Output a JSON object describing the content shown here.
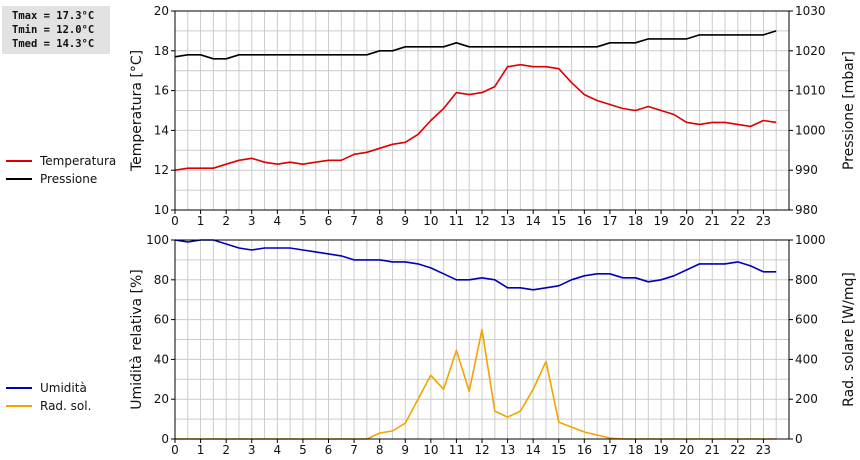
{
  "stats": {
    "tmax": "Tmax = 17.3°C",
    "tmin": "Tmin = 12.0°C",
    "tmed": "Tmed = 14.3°C"
  },
  "colors": {
    "temperature": "#dd0000",
    "pressure": "#000000",
    "humidity": "#0000bb",
    "radiation": "#f5a300",
    "grid": "#cccccc"
  },
  "chart_data": [
    {
      "type": "line",
      "xlim": [
        0,
        24
      ],
      "x_ticks": [
        "0",
        "1",
        "2",
        "3",
        "4",
        "5",
        "6",
        "7",
        "8",
        "9",
        "10",
        "11",
        "12",
        "13",
        "14",
        "15",
        "16",
        "17",
        "18",
        "19",
        "20",
        "21",
        "22",
        "23"
      ],
      "ylabel": "Temperatura [°C]",
      "ylim": [
        10,
        20
      ],
      "y_ticks": [
        "10",
        "12",
        "14",
        "16",
        "18",
        "20"
      ],
      "y2label": "Pressione [mbar]",
      "y2lim": [
        980,
        1030
      ],
      "y2_ticks": [
        "980",
        "990",
        "1000",
        "1010",
        "1020",
        "1030"
      ],
      "grid": true,
      "legend_position": "left",
      "series": [
        {
          "name": "Temperatura",
          "axis": "left",
          "x": [
            0,
            0.5,
            1,
            1.5,
            2,
            2.5,
            3,
            3.5,
            4,
            4.5,
            5,
            5.5,
            6,
            6.5,
            7,
            7.5,
            8,
            8.5,
            9,
            9.5,
            10,
            10.5,
            11,
            11.5,
            12,
            12.5,
            13,
            13.5,
            14,
            14.5,
            15,
            15.5,
            16,
            16.5,
            17,
            17.5,
            18,
            18.5,
            19,
            19.5,
            20,
            20.5,
            21,
            21.5,
            22,
            22.5,
            23,
            23.5
          ],
          "values": [
            12.0,
            12.1,
            12.1,
            12.1,
            12.3,
            12.5,
            12.6,
            12.4,
            12.3,
            12.4,
            12.3,
            12.4,
            12.5,
            12.5,
            12.8,
            12.9,
            13.1,
            13.3,
            13.4,
            13.8,
            14.5,
            15.1,
            15.9,
            15.8,
            15.9,
            16.2,
            17.2,
            17.3,
            17.2,
            17.2,
            17.1,
            16.4,
            15.8,
            15.5,
            15.3,
            15.1,
            15.0,
            15.2,
            15.0,
            14.8,
            14.4,
            14.3,
            14.4,
            14.4,
            14.3,
            14.2,
            14.5,
            14.4
          ]
        },
        {
          "name": "Pressione",
          "axis": "right",
          "x": [
            0,
            0.5,
            1,
            1.5,
            2,
            2.5,
            3,
            3.5,
            4,
            4.5,
            5,
            5.5,
            6,
            6.5,
            7,
            7.5,
            8,
            8.5,
            9,
            9.5,
            10,
            10.5,
            11,
            11.5,
            12,
            12.5,
            13,
            13.5,
            14,
            14.5,
            15,
            15.5,
            16,
            16.5,
            17,
            17.5,
            18,
            18.5,
            19,
            19.5,
            20,
            20.5,
            21,
            21.5,
            22,
            22.5,
            23,
            23.5
          ],
          "values": [
            1018.5,
            1019,
            1019,
            1018,
            1018,
            1019,
            1019,
            1019,
            1019,
            1019,
            1019,
            1019,
            1019,
            1019,
            1019,
            1019,
            1020,
            1020,
            1021,
            1021,
            1021,
            1021,
            1022,
            1021,
            1021,
            1021,
            1021,
            1021,
            1021,
            1021,
            1021,
            1021,
            1021,
            1021,
            1022,
            1022,
            1022,
            1023,
            1023,
            1023,
            1023,
            1024,
            1024,
            1024,
            1024,
            1024,
            1024,
            1025
          ]
        }
      ]
    },
    {
      "type": "line",
      "xlim": [
        0,
        24
      ],
      "x_ticks": [
        "0",
        "1",
        "2",
        "3",
        "4",
        "5",
        "6",
        "7",
        "8",
        "9",
        "10",
        "11",
        "12",
        "13",
        "14",
        "15",
        "16",
        "17",
        "18",
        "19",
        "20",
        "21",
        "22",
        "23"
      ],
      "ylabel": "Umidità relativa [%]",
      "ylim": [
        0,
        100
      ],
      "y_ticks": [
        "0",
        "20",
        "40",
        "60",
        "80",
        "100"
      ],
      "y2label": "Rad. solare [W/mq]",
      "y2lim": [
        0,
        1000
      ],
      "y2_ticks": [
        "0",
        "200",
        "400",
        "600",
        "800",
        "1000"
      ],
      "grid": true,
      "legend_position": "left",
      "series": [
        {
          "name": "Umidità",
          "axis": "left",
          "x": [
            0,
            0.5,
            1,
            1.5,
            2,
            2.5,
            3,
            3.5,
            4,
            4.5,
            5,
            5.5,
            6,
            6.5,
            7,
            7.5,
            8,
            8.5,
            9,
            9.5,
            10,
            10.5,
            11,
            11.5,
            12,
            12.5,
            13,
            13.5,
            14,
            14.5,
            15,
            15.5,
            16,
            16.5,
            17,
            17.5,
            18,
            18.5,
            19,
            19.5,
            20,
            20.5,
            21,
            21.5,
            22,
            22.5,
            23,
            23.5
          ],
          "values": [
            100,
            99,
            100,
            100,
            98,
            96,
            95,
            96,
            96,
            96,
            95,
            94,
            93,
            92,
            90,
            90,
            90,
            89,
            89,
            88,
            86,
            83,
            80,
            80,
            81,
            80,
            76,
            76,
            75,
            76,
            77,
            80,
            82,
            83,
            83,
            81,
            81,
            79,
            80,
            82,
            85,
            88,
            88,
            88,
            89,
            87,
            84,
            84
          ]
        },
        {
          "name": "Rad. sol.",
          "axis": "right",
          "x": [
            0,
            0.5,
            1,
            1.5,
            2,
            2.5,
            3,
            3.5,
            4,
            4.5,
            5,
            5.5,
            6,
            6.5,
            7,
            7.5,
            8,
            8.5,
            9,
            9.5,
            10,
            10.5,
            11,
            11.5,
            12,
            12.5,
            13,
            13.5,
            14,
            14.5,
            15,
            15.5,
            16,
            16.5,
            17,
            17.5,
            18,
            18.5,
            19,
            19.5,
            20,
            20.5,
            21,
            21.5,
            22,
            22.5,
            23,
            23.5
          ],
          "values": [
            0,
            0,
            0,
            0,
            0,
            0,
            0,
            0,
            0,
            0,
            0,
            0,
            0,
            0,
            0,
            0,
            30,
            40,
            80,
            200,
            320,
            250,
            445,
            240,
            550,
            140,
            110,
            140,
            250,
            390,
            85,
            60,
            35,
            20,
            5,
            0,
            0,
            0,
            0,
            0,
            0,
            0,
            0,
            0,
            0,
            0,
            0,
            0
          ]
        }
      ]
    }
  ]
}
